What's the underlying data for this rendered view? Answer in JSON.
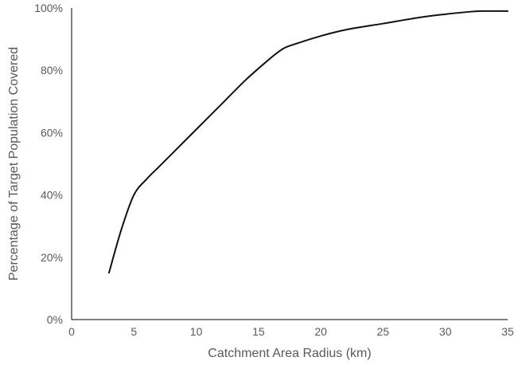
{
  "chart_data": {
    "type": "line",
    "title": "",
    "xlabel": "Catchment Area Radius (km)",
    "ylabel": "Percentage of Target Population Covered",
    "xlim": [
      0,
      35
    ],
    "ylim": [
      0,
      100
    ],
    "x_ticks": [
      0,
      5,
      10,
      15,
      20,
      25,
      30,
      35
    ],
    "y_ticks": [
      0,
      20,
      40,
      60,
      80,
      100
    ],
    "x_tick_labels": [
      "0",
      "5",
      "10",
      "15",
      "20",
      "25",
      "30",
      "35"
    ],
    "y_tick_labels": [
      "0%",
      "20%",
      "40%",
      "60%",
      "80%",
      "100%"
    ],
    "grid": false,
    "legend": "none",
    "line_color": "#111111",
    "axis_color": "#000000",
    "series": [
      {
        "x": [
          3,
          4,
          5,
          6,
          7,
          8,
          10,
          12,
          14,
          16,
          17,
          18,
          20,
          22,
          25,
          28,
          30,
          32,
          33,
          35
        ],
        "y": [
          15,
          29,
          40,
          45,
          49,
          53,
          61,
          69,
          77,
          84,
          87,
          88.5,
          91,
          93,
          95,
          97,
          98,
          98.8,
          99,
          99
        ]
      }
    ]
  }
}
